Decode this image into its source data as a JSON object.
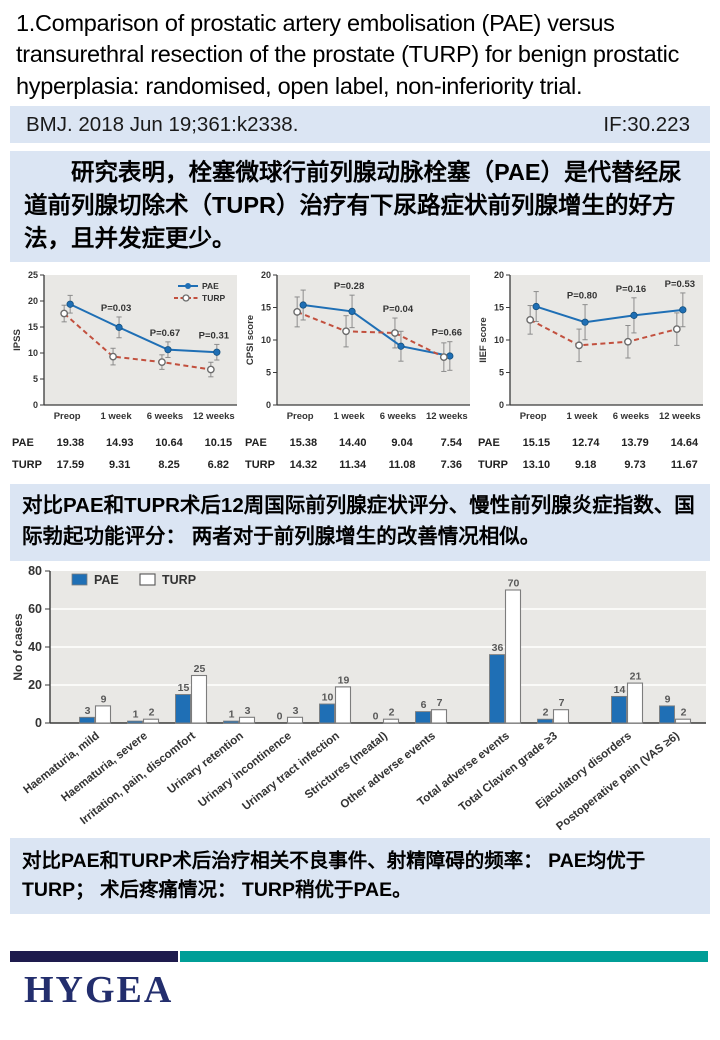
{
  "title": "1.Comparison of prostatic artery embolisation (PAE) versus transurethral resection of the prostate (TURP) for benign prostatic hyperplasia: randomised, open label, non-inferiority trial.",
  "citation": {
    "ref": "BMJ. 2018 Jun 19;361:k2338.",
    "impact_factor": "IF:30.223"
  },
  "summary_blocks": {
    "block1": "研究表明，栓塞微球行前列腺动脉栓塞（PAE）是代替经尿道前列腺切除术（TUPR）治疗有下尿路症状前列腺增生的好方法，且并发症更少。",
    "block2": "对比PAE和TUPR术后12周国际前列腺症状评分、慢性前列腺炎症指数、国际勃起功能评分： 两者对于前列腺增生的改善情况相似。",
    "block3": "对比PAE和TURP术后治疗相关不良事件、射精障碍的频率： PAE均优于TURP； 术后疼痛情况： TURP稍优于PAE。"
  },
  "logo_text": "HYGEA",
  "colors": {
    "band_bg": "#dbe5f3",
    "plot_bg": "#e9e8e5",
    "pae_blue": "#1f6fb5",
    "turp_red": "#c2503e",
    "bar_border": "#7d7d7d",
    "value_label": "#595959",
    "axis_text": "#333333",
    "footer_navy": "#1e1b4d",
    "footer_teal": "#009e97",
    "logo_navy": "#232e6d"
  },
  "chart_data": [
    {
      "type": "line",
      "ylabel": "IPSS",
      "ylim": [
        0,
        25
      ],
      "yticks": [
        0,
        5,
        10,
        15,
        20,
        25
      ],
      "categories": [
        "Preop",
        "1 week",
        "6 weeks",
        "12 weeks"
      ],
      "legend": true,
      "legend_entries": [
        "PAE",
        "TURP"
      ],
      "series": [
        {
          "name": "PAE",
          "color": "#1f6fb5",
          "style": "solid",
          "marker": "filled",
          "values": [
            19.38,
            14.93,
            10.64,
            10.15
          ],
          "err": [
            1.7,
            2.0,
            1.5,
            1.5
          ]
        },
        {
          "name": "TURP",
          "color": "#c2503e",
          "style": "dashed",
          "marker": "open",
          "values": [
            17.59,
            9.31,
            8.25,
            6.82
          ],
          "err": [
            1.6,
            1.6,
            1.4,
            1.4
          ]
        }
      ],
      "annotations": [
        "",
        "P=0.03",
        "P=0.67",
        "P=0.31"
      ]
    },
    {
      "type": "line",
      "ylabel": "CPSI score",
      "ylim": [
        0,
        20
      ],
      "yticks": [
        0,
        5,
        10,
        15,
        20
      ],
      "categories": [
        "Preop",
        "1 week",
        "6 weeks",
        "12 weeks"
      ],
      "legend": false,
      "series": [
        {
          "name": "PAE",
          "color": "#1f6fb5",
          "style": "solid",
          "marker": "filled",
          "values": [
            15.38,
            14.4,
            9.04,
            7.54
          ],
          "err": [
            2.3,
            2.5,
            2.3,
            2.2
          ]
        },
        {
          "name": "TURP",
          "color": "#c2503e",
          "style": "dashed",
          "marker": "open",
          "values": [
            14.32,
            11.34,
            11.08,
            7.36
          ],
          "err": [
            2.3,
            2.4,
            2.3,
            2.2
          ]
        }
      ],
      "annotations": [
        "",
        "P=0.28",
        "P=0.04",
        "P=0.66"
      ]
    },
    {
      "type": "line",
      "ylabel": "IIEF score",
      "ylim": [
        0,
        20
      ],
      "yticks": [
        0,
        5,
        10,
        15,
        20
      ],
      "categories": [
        "Preop",
        "1 week",
        "6 weeks",
        "12 weeks"
      ],
      "legend": false,
      "series": [
        {
          "name": "PAE",
          "color": "#1f6fb5",
          "style": "solid",
          "marker": "filled",
          "values": [
            15.15,
            12.74,
            13.79,
            14.64
          ],
          "err": [
            2.3,
            2.7,
            2.7,
            2.6
          ]
        },
        {
          "name": "TURP",
          "color": "#c2503e",
          "style": "dashed",
          "marker": "open",
          "values": [
            13.1,
            9.18,
            9.73,
            11.67
          ],
          "err": [
            2.2,
            2.5,
            2.5,
            2.5
          ]
        }
      ],
      "annotations": [
        "",
        "P=0.80",
        "P=0.16",
        "P=0.53"
      ]
    },
    {
      "type": "bar",
      "ylabel": "No of cases",
      "ylim": [
        0,
        80
      ],
      "yticks": [
        0,
        20,
        40,
        60,
        80
      ],
      "grid": [
        20,
        40,
        60
      ],
      "legend_entries": [
        "PAE",
        "TURP"
      ],
      "categories": [
        "Haematuria, mild",
        "Haematuria, severe",
        "Irritation, pain, discomfort",
        "Urinary retention",
        "Urinary incontinence",
        "Urinary tract infection",
        "Strictures (meatal)",
        "Other adverse events",
        "Total adverse events",
        "Total Clavien grade ≥3",
        "Ejaculatory disorders",
        "Postoperative pain (VAS ≥6)"
      ],
      "gap_before": [
        8,
        10
      ],
      "series": [
        {
          "name": "PAE",
          "values": [
            3,
            1,
            15,
            1,
            0,
            10,
            0,
            6,
            36,
            2,
            14,
            9
          ]
        },
        {
          "name": "TURP",
          "values": [
            9,
            2,
            25,
            3,
            3,
            19,
            2,
            7,
            70,
            7,
            21,
            2
          ]
        }
      ]
    }
  ]
}
